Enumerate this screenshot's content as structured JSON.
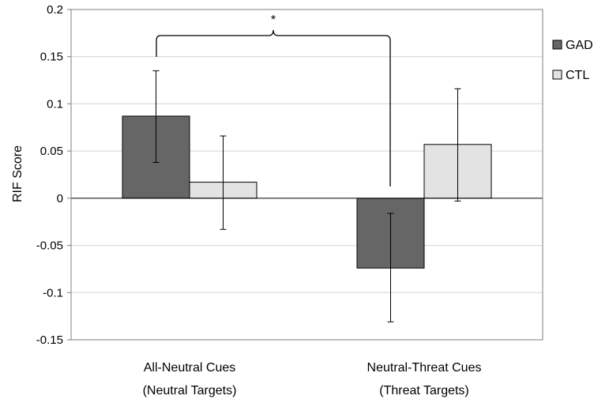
{
  "chart_data": {
    "type": "bar",
    "title": "",
    "xlabel": "",
    "ylabel": "RIF Score",
    "ylim": [
      -0.15,
      0.2
    ],
    "yticks": [
      -0.15,
      -0.1,
      -0.05,
      0,
      0.05,
      0.1,
      0.15,
      0.2
    ],
    "ytick_labels": [
      "-0.15",
      "-0.1",
      "-0.05",
      "0",
      "0.05",
      "0.1",
      "0.15",
      "0.2"
    ],
    "grid": true,
    "legend_position": "right",
    "categories": [
      {
        "line1": "All-Neutral Cues",
        "line2": "(Neutral Targets)"
      },
      {
        "line1": "Neutral-Threat Cues",
        "line2": "(Threat Targets)"
      }
    ],
    "series": [
      {
        "name": "GAD",
        "color": "#666666",
        "values": [
          0.087,
          -0.074
        ],
        "err_low": [
          0.038,
          -0.131
        ],
        "err_high": [
          0.135,
          -0.016
        ]
      },
      {
        "name": "CTL",
        "color": "#e3e3e3",
        "values": [
          0.017,
          0.057
        ],
        "err_low": [
          -0.033,
          -0.003
        ],
        "err_high": [
          0.066,
          0.116
        ]
      }
    ],
    "annotations": {
      "significance": "*"
    }
  }
}
